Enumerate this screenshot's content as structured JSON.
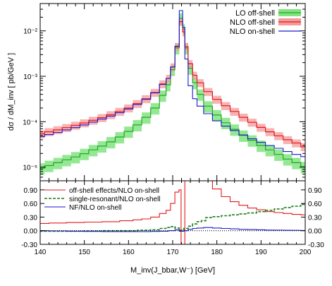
{
  "chart_data": [
    {
      "type": "line",
      "panel": "upper",
      "ylabel": "dσ / dM_inv  [ pb/GeV ]",
      "yscale": "log",
      "ylim": [
        5e-06,
        0.04
      ],
      "xlim": [
        140,
        200
      ],
      "yticks": [
        {
          "value": 1e-05,
          "label": "10⁻⁵"
        },
        {
          "value": 0.0001,
          "label": "10⁻⁴"
        },
        {
          "value": 0.001,
          "label": "10⁻³"
        },
        {
          "value": 0.01,
          "label": "10⁻²"
        }
      ],
      "legend_position": "top-right",
      "series": [
        {
          "name": "LO off-shell",
          "style": "band",
          "color": "#2ca02c",
          "band_color": "#7fe57f",
          "x": [
            140,
            142,
            144,
            146,
            148,
            150,
            152,
            154,
            156,
            158,
            160,
            162,
            164,
            166,
            168,
            169,
            170,
            171,
            172,
            172.5,
            173,
            174,
            175,
            176,
            178,
            180,
            182,
            184,
            186,
            188,
            190,
            192,
            194,
            196,
            198,
            200
          ],
          "y": [
            9.5e-06,
            1.08e-05,
            1.25e-05,
            1.45e-05,
            1.68e-05,
            1.98e-05,
            2.4e-05,
            2.9e-05,
            3.6e-05,
            4.6e-05,
            6.1e-05,
            8.5e-05,
            0.000125,
            0.0002,
            0.00038,
            0.00065,
            0.0014,
            0.0042,
            0.019,
            0.011,
            0.0042,
            0.0015,
            0.00072,
            0.0004,
            0.00022,
            0.00014,
            9.5e-05,
            6.8e-05,
            5e-05,
            3.9e-05,
            3e-05,
            2.4e-05,
            1.9e-05,
            1.5e-05,
            1.25e-05,
            1.02e-05
          ],
          "band_rel": 0.28
        },
        {
          "name": "NLO off-shell",
          "style": "band",
          "color": "#e41a1c",
          "band_color": "#f49a9a",
          "x": [
            140,
            142,
            144,
            146,
            148,
            150,
            152,
            154,
            156,
            158,
            160,
            162,
            164,
            166,
            168,
            169,
            170,
            171,
            172,
            172.5,
            173,
            174,
            175,
            176,
            178,
            180,
            182,
            184,
            186,
            188,
            190,
            192,
            194,
            196,
            198,
            200
          ],
          "y": [
            5.4e-05,
            6e-05,
            6.6e-05,
            7.4e-05,
            8.3e-05,
            9.4e-05,
            0.000107,
            0.000123,
            0.000142,
            0.000168,
            0.0002,
            0.00025,
            0.00032,
            0.00044,
            0.00068,
            0.0009,
            0.0016,
            0.0045,
            0.016,
            0.0095,
            0.0045,
            0.0019,
            0.00105,
            0.00072,
            0.00046,
            0.00031,
            0.000225,
            0.000168,
            0.000125,
            9.7e-05,
            7.5e-05,
            6e-05,
            4.9e-05,
            4e-05,
            3.4e-05,
            2.8e-05
          ],
          "band_rel": 0.2
        },
        {
          "name": "NLO on-shell",
          "style": "line",
          "color": "#1a1acc",
          "x": [
            140,
            142,
            144,
            146,
            148,
            150,
            152,
            154,
            156,
            158,
            160,
            162,
            164,
            166,
            168,
            169,
            170,
            171,
            172,
            172.5,
            173,
            174,
            175,
            176,
            178,
            180,
            182,
            184,
            186,
            188,
            190,
            192,
            194,
            196,
            198,
            200
          ],
          "y": [
            4.7e-05,
            5.2e-05,
            5.8e-05,
            6.6e-05,
            7.4e-05,
            8.5e-05,
            9.8e-05,
            0.000114,
            0.000133,
            0.000158,
            0.00019,
            0.00024,
            0.00031,
            0.00043,
            0.00066,
            0.0009,
            0.0016,
            0.0046,
            0.028,
            0.012,
            0.0024,
            0.00062,
            0.00032,
            0.00022,
            0.00015,
            0.000105,
            8e-05,
            6.4e-05,
            5.1e-05,
            4.2e-05,
            3.5e-05,
            3e-05,
            2.6e-05,
            2.2e-05,
            1.9e-05,
            1.7e-05
          ]
        }
      ]
    },
    {
      "type": "line",
      "panel": "lower",
      "xlabel": "M_inv(J_bbar,W⁻)  [GeV]",
      "xlim": [
        140,
        200
      ],
      "ylim": [
        -0.3,
        1.1
      ],
      "xticks": [
        140,
        150,
        160,
        170,
        180,
        190,
        200
      ],
      "yticks": [
        {
          "value": -0.3,
          "label": "-0.30"
        },
        {
          "value": 0.0,
          "label": "0.00"
        },
        {
          "value": 0.3,
          "label": "0.30"
        },
        {
          "value": 0.6,
          "label": "0.60"
        },
        {
          "value": 0.9,
          "label": "0.90"
        }
      ],
      "legend_position": "top-left",
      "series": [
        {
          "name": "off-shell effects/NLO on-shell",
          "style": "solid",
          "color": "#e41a1c",
          "x": [
            140,
            144,
            148,
            152,
            156,
            160,
            162,
            164,
            166,
            168,
            169,
            170,
            171,
            171.8,
            172,
            172.5,
            173,
            174,
            175,
            176,
            177,
            178,
            180,
            182,
            184,
            186,
            188,
            190,
            192,
            194,
            196,
            198,
            200
          ],
          "y": [
            0.16,
            0.17,
            0.18,
            0.19,
            0.2,
            0.22,
            0.24,
            0.26,
            0.3,
            0.38,
            0.45,
            0.6,
            0.85,
            0.9,
            -0.35,
            -0.35,
            1.1,
            1.1,
            1.1,
            1.1,
            1.1,
            1.1,
            0.92,
            0.75,
            0.64,
            0.56,
            0.5,
            0.46,
            0.42,
            0.4,
            0.38,
            0.36,
            0.35
          ]
        },
        {
          "name": "single-resonant/NLO on-shell",
          "style": "dashed",
          "color": "#1a7f1a",
          "x": [
            140,
            144,
            148,
            152,
            156,
            160,
            164,
            166,
            168,
            169,
            170,
            171,
            172,
            173,
            174,
            175,
            176,
            177,
            178,
            180,
            182,
            184,
            186,
            188,
            190,
            192,
            194,
            196,
            198,
            200
          ],
          "y": [
            -0.01,
            -0.01,
            -0.01,
            -0.005,
            0.0,
            0.0,
            0.01,
            0.02,
            0.05,
            0.07,
            0.09,
            0.06,
            0.01,
            0.05,
            0.1,
            0.15,
            0.2,
            0.22,
            0.29,
            0.31,
            0.33,
            0.35,
            0.37,
            0.39,
            0.42,
            0.45,
            0.48,
            0.51,
            0.54,
            0.58
          ]
        },
        {
          "name": "NF/NLO on-shell",
          "style": "solid",
          "color": "#1a1acc",
          "x": [
            140,
            144,
            148,
            152,
            156,
            160,
            164,
            166,
            168,
            170,
            171,
            172,
            173,
            174,
            175,
            176,
            178,
            180,
            182,
            184,
            186,
            188,
            190,
            192,
            194,
            196,
            198,
            200
          ],
          "y": [
            0.0,
            -0.005,
            -0.01,
            -0.015,
            -0.02,
            -0.02,
            -0.02,
            -0.015,
            -0.01,
            0.0,
            0.02,
            -0.01,
            0.0,
            0.03,
            0.05,
            0.06,
            0.07,
            0.06,
            0.05,
            0.04,
            0.03,
            0.025,
            0.02,
            0.015,
            0.012,
            0.01,
            0.008,
            0.005
          ]
        },
        {
          "name": "",
          "style": "dotted-reference",
          "color": "#000000",
          "x": [
            140,
            200
          ],
          "y": [
            0.0,
            0.0
          ]
        }
      ]
    }
  ]
}
